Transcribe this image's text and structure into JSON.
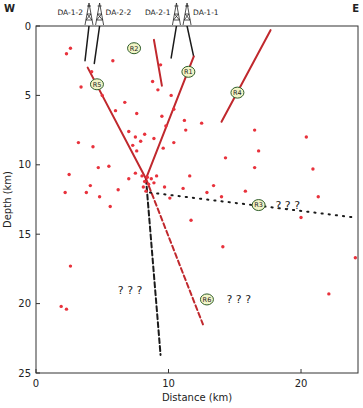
{
  "chart_data": {
    "type": "scatter",
    "x_label": "Distance (km)",
    "y_label": "Depth (km)",
    "xlim": [
      0,
      24.3
    ],
    "ylim": [
      25,
      0
    ],
    "xticks": [
      0,
      10,
      20
    ],
    "yticks": [
      0,
      5,
      10,
      15,
      20,
      25
    ],
    "direction_labels": [
      "W",
      "E"
    ],
    "wells": [
      {
        "label": "DA-1-2",
        "x": 4.0
      },
      {
        "label": "DA-2-2",
        "x": 4.8
      },
      {
        "label": "DA-2-1",
        "x": 10.6
      },
      {
        "label": "DA-1-1",
        "x": 11.4
      }
    ],
    "series": [
      {
        "type": "scatter",
        "color": "#e8323c",
        "marker": "circle",
        "x": [
          2.6,
          2.3,
          4.2,
          3.4,
          5.0,
          6.7,
          6.0,
          7.6,
          8.8,
          9.2,
          9.5,
          10.4,
          9.8,
          7.0,
          7.5,
          7.9,
          8.2,
          7.3,
          7.6,
          8.9,
          9.6,
          10.4,
          11.3,
          11.2,
          12.5,
          3.2,
          4.3,
          2.5,
          4.7,
          5.5,
          4.1,
          3.8,
          4.8,
          6.2,
          5.6,
          2.2,
          7.0,
          7.5,
          8.0,
          8.2,
          8.4,
          8.5,
          8.7,
          8.1,
          8.9,
          8.3,
          9.1,
          9.7,
          10.1,
          11.1,
          11.6,
          12.9,
          13.4,
          14.3,
          14.0,
          15.8,
          14.1,
          11.7,
          16.5,
          16.5,
          16.8,
          20.4,
          20.9,
          20.0,
          21.3,
          22.1,
          24.1,
          2.6,
          1.9,
          2.3,
          5.8,
          9.4,
          10.2
        ],
        "values": [
          1.6,
          2.0,
          3.3,
          4.4,
          5.0,
          5.5,
          6.1,
          6.3,
          4.0,
          4.6,
          6.5,
          6.0,
          7.2,
          7.6,
          8.0,
          8.3,
          7.8,
          8.6,
          9.0,
          8.1,
          8.8,
          8.4,
          7.5,
          6.8,
          7.0,
          8.4,
          8.7,
          10.7,
          10.2,
          10.1,
          11.5,
          12.0,
          12.3,
          11.8,
          13.0,
          12.0,
          11.0,
          10.6,
          10.8,
          11.2,
          10.9,
          11.4,
          11.0,
          11.6,
          11.3,
          11.9,
          10.8,
          11.6,
          12.4,
          11.7,
          10.8,
          12.0,
          11.5,
          9.5,
          12.3,
          11.9,
          15.9,
          14.0,
          7.5,
          10.2,
          9.0,
          8.0,
          10.3,
          13.8,
          12.3,
          19.3,
          16.7,
          17.3,
          20.2,
          20.4,
          2.5,
          2.8,
          5.0
        ]
      },
      {
        "type": "line",
        "color": "#1a1a1a",
        "line_style": "solid",
        "x": [
          4.0,
          3.7
        ],
        "values": [
          0.0,
          2.5
        ]
      },
      {
        "type": "line",
        "color": "#1a1a1a",
        "line_style": "solid",
        "x": [
          4.8,
          4.4
        ],
        "values": [
          0.0,
          2.7
        ]
      },
      {
        "type": "line",
        "color": "#1a1a1a",
        "line_style": "solid",
        "x": [
          10.6,
          10.2
        ],
        "values": [
          0.0,
          2.3
        ]
      },
      {
        "type": "line",
        "color": "#1a1a1a",
        "line_style": "solid",
        "x": [
          11.4,
          11.9
        ],
        "values": [
          0.0,
          2.2
        ]
      },
      {
        "type": "line",
        "color": "#c0282d",
        "line_style": "solid",
        "x": [
          3.9,
          8.3
        ],
        "values": [
          3.0,
          11.0
        ]
      },
      {
        "type": "line",
        "color": "#c0282d",
        "line_style": "solid",
        "x": [
          8.9,
          9.5
        ],
        "values": [
          1.0,
          4.3
        ]
      },
      {
        "type": "line",
        "color": "#c0282d",
        "line_style": "solid",
        "x": [
          11.9,
          8.3
        ],
        "values": [
          2.2,
          11.0
        ]
      },
      {
        "type": "line",
        "color": "#c0282d",
        "line_style": "solid",
        "x": [
          17.7,
          14.0
        ],
        "values": [
          0.3,
          6.9
        ]
      },
      {
        "type": "line",
        "color": "#1a1a1a",
        "line_style": "dashed",
        "x": [
          8.3,
          9.4
        ],
        "values": [
          11.0,
          23.7
        ]
      },
      {
        "type": "line",
        "color": "#c0282d",
        "line_style": "dashed",
        "x": [
          8.3,
          12.6
        ],
        "values": [
          11.0,
          21.5
        ]
      },
      {
        "type": "line",
        "color": "#1a1a1a",
        "line_style": "dotted",
        "x": [
          8.6,
          24.1
        ],
        "values": [
          12.0,
          13.8
        ]
      }
    ],
    "fault_labels": [
      {
        "text": "R5",
        "x": 4.6,
        "y": 4.2
      },
      {
        "text": "R2",
        "x": 7.4,
        "y": 1.6
      },
      {
        "text": "R1",
        "x": 11.5,
        "y": 3.3
      },
      {
        "text": "R4",
        "x": 15.2,
        "y": 4.8
      },
      {
        "text": "R3",
        "x": 16.8,
        "y": 12.9
      },
      {
        "text": "R6",
        "x": 12.9,
        "y": 19.7
      }
    ],
    "annotations": [
      {
        "text": "? ? ?",
        "x": 7.1,
        "y": 19.0
      },
      {
        "text": "? ? ?",
        "x": 19.0,
        "y": 12.9
      },
      {
        "text": "? ? ?",
        "x": 15.3,
        "y": 19.7
      }
    ]
  }
}
